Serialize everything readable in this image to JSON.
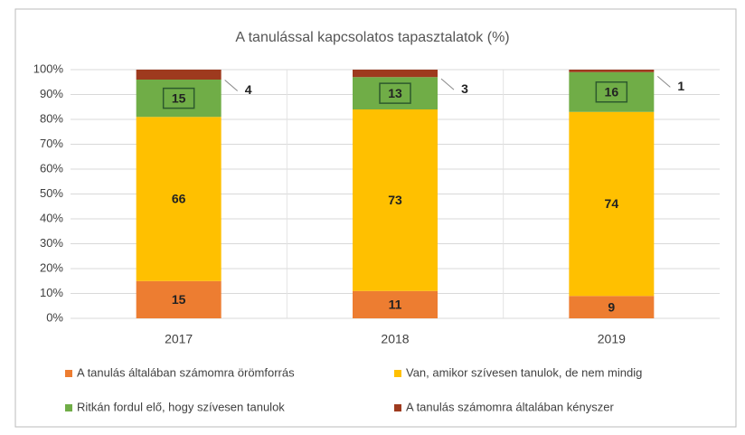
{
  "chart_data": {
    "type": "stacked_bar",
    "title": "A tanulással kapcsolatos tapasztalatok (%)",
    "categories": [
      "2017",
      "2018",
      "2019"
    ],
    "series": [
      {
        "name": "A tanulás általában számomra örömforrás",
        "color": "#ed7d31",
        "values": [
          15,
          11,
          9
        ]
      },
      {
        "name": "Van, amikor szívesen tanulok, de nem mindig",
        "color": "#ffc000",
        "values": [
          66,
          73,
          74
        ]
      },
      {
        "name": "Ritkán fordul elő, hogy szívesen tanulok",
        "color": "#70ad47",
        "values": [
          15,
          13,
          16
        ]
      },
      {
        "name": "A tanulás számomra általában kényszer",
        "color": "#9e3a1e",
        "values": [
          4,
          3,
          1
        ]
      }
    ],
    "ylim": [
      0,
      100
    ],
    "yticks": [
      {
        "value": 0,
        "label": "0%"
      },
      {
        "value": 10,
        "label": "10%"
      },
      {
        "value": 20,
        "label": "20%"
      },
      {
        "value": 30,
        "label": "30%"
      },
      {
        "value": 40,
        "label": "40%"
      },
      {
        "value": 50,
        "label": "50%"
      },
      {
        "value": 60,
        "label": "60%"
      },
      {
        "value": 70,
        "label": "70%"
      },
      {
        "value": 80,
        "label": "80%"
      },
      {
        "value": 90,
        "label": "90%"
      },
      {
        "value": 100,
        "label": "100%"
      }
    ],
    "grid": true
  }
}
